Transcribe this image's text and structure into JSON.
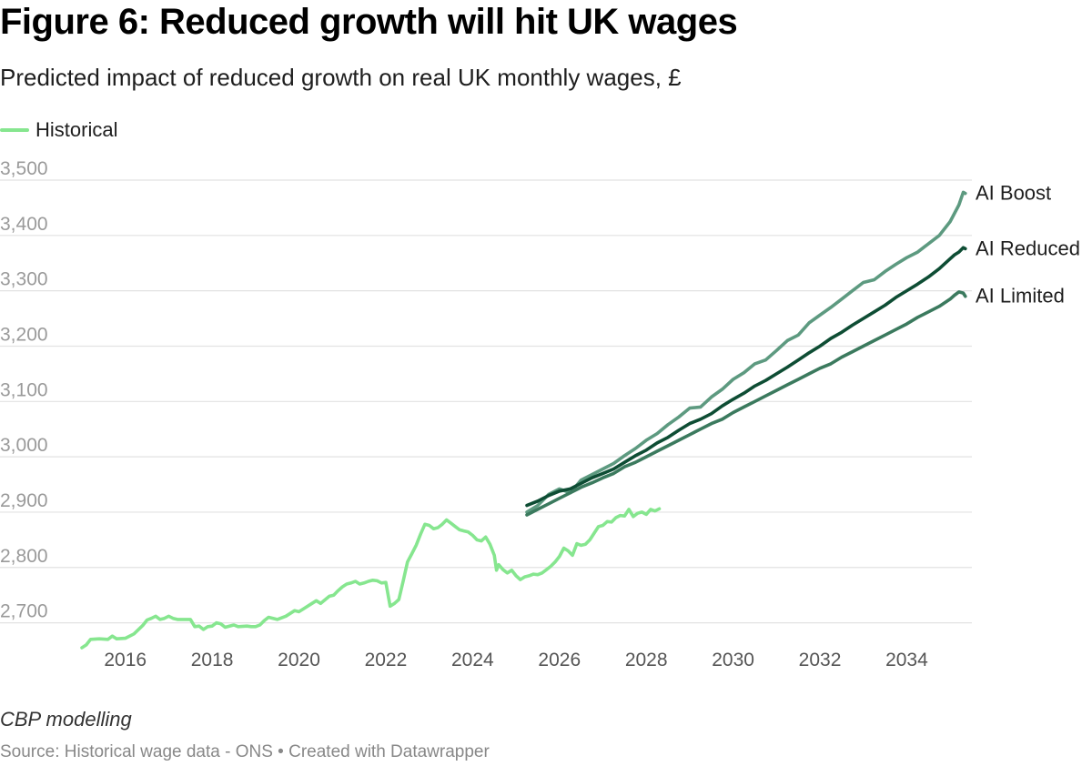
{
  "header": {
    "title": "Figure 6: Reduced growth will hit UK wages",
    "subtitle": "Predicted impact of reduced growth on real UK monthly wages, £"
  },
  "legend": {
    "label": "Historical",
    "color": "#86e68f"
  },
  "footer": {
    "note": "CBP modelling",
    "source": "Source: Historical wage data - ONS • Created with Datawrapper"
  },
  "chart_data": {
    "type": "line",
    "title": "Figure 6: Reduced growth will hit UK wages",
    "subtitle": "Predicted impact of reduced growth on real UK monthly wages, £",
    "xlabel": "",
    "ylabel": "",
    "xlim": [
      2015.0,
      2035.5
    ],
    "ylim": [
      2650,
      3500
    ],
    "x_ticks": [
      2016,
      2018,
      2020,
      2022,
      2024,
      2026,
      2028,
      2030,
      2032,
      2034
    ],
    "x_tick_labels": [
      "2016",
      "2018",
      "2020",
      "2022",
      "2024",
      "2026",
      "2028",
      "2030",
      "2032",
      "2034"
    ],
    "y_ticks": [
      2700,
      2800,
      2900,
      3000,
      3100,
      3200,
      3300,
      3400,
      3500
    ],
    "y_tick_labels": [
      "2,700",
      "2,800",
      "2,900",
      "3,000",
      "3,100",
      "3,200",
      "3,300",
      "3,400",
      "3,500"
    ],
    "grid": true,
    "legend_position": "top-left",
    "series": [
      {
        "name": "Historical",
        "color": "#86e68f",
        "points": [
          [
            2015.0,
            2655
          ],
          [
            2015.1,
            2660
          ],
          [
            2015.2,
            2670
          ],
          [
            2015.4,
            2671
          ],
          [
            2015.6,
            2670
          ],
          [
            2015.7,
            2676
          ],
          [
            2015.8,
            2671
          ],
          [
            2016.0,
            2672
          ],
          [
            2016.2,
            2680
          ],
          [
            2016.4,
            2695
          ],
          [
            2016.5,
            2705
          ],
          [
            2016.6,
            2708
          ],
          [
            2016.7,
            2712
          ],
          [
            2016.8,
            2706
          ],
          [
            2016.9,
            2708
          ],
          [
            2017.0,
            2712
          ],
          [
            2017.1,
            2708
          ],
          [
            2017.2,
            2706
          ],
          [
            2017.4,
            2706
          ],
          [
            2017.5,
            2706
          ],
          [
            2017.6,
            2693
          ],
          [
            2017.7,
            2694
          ],
          [
            2017.8,
            2688
          ],
          [
            2017.9,
            2693
          ],
          [
            2018.0,
            2694
          ],
          [
            2018.1,
            2700
          ],
          [
            2018.2,
            2698
          ],
          [
            2018.3,
            2692
          ],
          [
            2018.5,
            2696
          ],
          [
            2018.6,
            2693
          ],
          [
            2018.8,
            2694
          ],
          [
            2018.9,
            2693
          ],
          [
            2019.0,
            2693
          ],
          [
            2019.1,
            2696
          ],
          [
            2019.2,
            2704
          ],
          [
            2019.3,
            2710
          ],
          [
            2019.5,
            2706
          ],
          [
            2019.7,
            2712
          ],
          [
            2019.9,
            2722
          ],
          [
            2020.0,
            2720
          ],
          [
            2020.1,
            2725
          ],
          [
            2020.3,
            2735
          ],
          [
            2020.4,
            2740
          ],
          [
            2020.5,
            2735
          ],
          [
            2020.7,
            2748
          ],
          [
            2020.8,
            2750
          ],
          [
            2020.9,
            2758
          ],
          [
            2021.0,
            2765
          ],
          [
            2021.1,
            2770
          ],
          [
            2021.2,
            2772
          ],
          [
            2021.3,
            2775
          ],
          [
            2021.4,
            2770
          ],
          [
            2021.5,
            2772
          ],
          [
            2021.6,
            2775
          ],
          [
            2021.7,
            2777
          ],
          [
            2021.8,
            2776
          ],
          [
            2021.9,
            2772
          ],
          [
            2022.0,
            2773
          ],
          [
            2022.1,
            2730
          ],
          [
            2022.2,
            2735
          ],
          [
            2022.3,
            2742
          ],
          [
            2022.4,
            2775
          ],
          [
            2022.5,
            2810
          ],
          [
            2022.6,
            2825
          ],
          [
            2022.7,
            2840
          ],
          [
            2022.8,
            2860
          ],
          [
            2022.9,
            2878
          ],
          [
            2023.0,
            2876
          ],
          [
            2023.1,
            2870
          ],
          [
            2023.2,
            2872
          ],
          [
            2023.3,
            2878
          ],
          [
            2023.4,
            2886
          ],
          [
            2023.5,
            2880
          ],
          [
            2023.6,
            2874
          ],
          [
            2023.7,
            2868
          ],
          [
            2023.8,
            2866
          ],
          [
            2023.9,
            2864
          ],
          [
            2024.0,
            2858
          ],
          [
            2024.1,
            2850
          ],
          [
            2024.2,
            2848
          ],
          [
            2024.3,
            2855
          ],
          [
            2024.4,
            2842
          ],
          [
            2024.5,
            2822
          ],
          [
            2024.55,
            2795
          ],
          [
            2024.6,
            2805
          ],
          [
            2024.7,
            2796
          ],
          [
            2024.8,
            2790
          ],
          [
            2024.9,
            2795
          ],
          [
            2025.0,
            2785
          ],
          [
            2025.1,
            2778
          ],
          [
            2025.2,
            2783
          ],
          [
            2025.3,
            2785
          ],
          [
            2025.4,
            2788
          ],
          [
            2025.5,
            2787
          ],
          [
            2025.6,
            2790
          ],
          [
            2025.7,
            2796
          ],
          [
            2025.8,
            2802
          ],
          [
            2025.9,
            2810
          ],
          [
            2026.0,
            2820
          ],
          [
            2026.1,
            2835
          ],
          [
            2026.2,
            2830
          ],
          [
            2026.3,
            2822
          ],
          [
            2026.4,
            2843
          ],
          [
            2026.5,
            2840
          ],
          [
            2026.6,
            2842
          ],
          [
            2026.7,
            2850
          ],
          [
            2026.8,
            2862
          ],
          [
            2026.9,
            2874
          ],
          [
            2027.0,
            2876
          ],
          [
            2027.1,
            2883
          ],
          [
            2027.2,
            2882
          ],
          [
            2027.3,
            2890
          ],
          [
            2027.4,
            2894
          ],
          [
            2027.5,
            2893
          ],
          [
            2027.6,
            2905
          ],
          [
            2027.7,
            2892
          ],
          [
            2027.8,
            2898
          ],
          [
            2027.9,
            2900
          ],
          [
            2028.0,
            2896
          ],
          [
            2028.1,
            2905
          ],
          [
            2028.2,
            2902
          ],
          [
            2028.3,
            2906
          ]
        ]
      },
      {
        "name": "AI Boost",
        "color": "#5d9a80",
        "end_label": "AI Boost",
        "points": [
          [
            2025.25,
            2900
          ],
          [
            2025.5,
            2912
          ],
          [
            2025.75,
            2932
          ],
          [
            2026.0,
            2942
          ],
          [
            2026.25,
            2935
          ],
          [
            2026.5,
            2958
          ],
          [
            2026.75,
            2968
          ],
          [
            2027.0,
            2978
          ],
          [
            2027.25,
            2988
          ],
          [
            2027.5,
            3002
          ],
          [
            2027.75,
            3015
          ],
          [
            2028.0,
            3030
          ],
          [
            2028.25,
            3042
          ],
          [
            2028.5,
            3058
          ],
          [
            2028.75,
            3072
          ],
          [
            2029.0,
            3088
          ],
          [
            2029.25,
            3090
          ],
          [
            2029.5,
            3108
          ],
          [
            2029.75,
            3122
          ],
          [
            2030.0,
            3140
          ],
          [
            2030.25,
            3152
          ],
          [
            2030.5,
            3168
          ],
          [
            2030.75,
            3175
          ],
          [
            2031.0,
            3192
          ],
          [
            2031.25,
            3210
          ],
          [
            2031.5,
            3220
          ],
          [
            2031.75,
            3242
          ],
          [
            2032.0,
            3256
          ],
          [
            2032.25,
            3270
          ],
          [
            2032.5,
            3285
          ],
          [
            2032.75,
            3300
          ],
          [
            2033.0,
            3315
          ],
          [
            2033.25,
            3320
          ],
          [
            2033.5,
            3335
          ],
          [
            2033.75,
            3348
          ],
          [
            2034.0,
            3360
          ],
          [
            2034.25,
            3370
          ],
          [
            2034.5,
            3385
          ],
          [
            2034.75,
            3400
          ],
          [
            2035.0,
            3425
          ],
          [
            2035.1,
            3440
          ],
          [
            2035.2,
            3455
          ],
          [
            2035.3,
            3478
          ],
          [
            2035.35,
            3476
          ]
        ]
      },
      {
        "name": "AI Reduced",
        "color": "#0e4d34",
        "end_label": "AI Reduced",
        "points": [
          [
            2025.25,
            2912
          ],
          [
            2025.5,
            2920
          ],
          [
            2025.75,
            2930
          ],
          [
            2026.0,
            2938
          ],
          [
            2026.25,
            2942
          ],
          [
            2026.5,
            2952
          ],
          [
            2026.75,
            2962
          ],
          [
            2027.0,
            2970
          ],
          [
            2027.25,
            2978
          ],
          [
            2027.5,
            2990
          ],
          [
            2027.75,
            3002
          ],
          [
            2028.0,
            3012
          ],
          [
            2028.25,
            3025
          ],
          [
            2028.5,
            3035
          ],
          [
            2028.75,
            3048
          ],
          [
            2029.0,
            3060
          ],
          [
            2029.25,
            3068
          ],
          [
            2029.5,
            3078
          ],
          [
            2029.75,
            3092
          ],
          [
            2030.0,
            3104
          ],
          [
            2030.25,
            3115
          ],
          [
            2030.5,
            3128
          ],
          [
            2030.75,
            3138
          ],
          [
            2031.0,
            3150
          ],
          [
            2031.25,
            3162
          ],
          [
            2031.5,
            3175
          ],
          [
            2031.75,
            3188
          ],
          [
            2032.0,
            3200
          ],
          [
            2032.25,
            3214
          ],
          [
            2032.5,
            3225
          ],
          [
            2032.75,
            3238
          ],
          [
            2033.0,
            3250
          ],
          [
            2033.25,
            3262
          ],
          [
            2033.5,
            3274
          ],
          [
            2033.75,
            3288
          ],
          [
            2034.0,
            3300
          ],
          [
            2034.25,
            3312
          ],
          [
            2034.5,
            3325
          ],
          [
            2034.75,
            3340
          ],
          [
            2035.0,
            3358
          ],
          [
            2035.1,
            3365
          ],
          [
            2035.2,
            3370
          ],
          [
            2035.3,
            3378
          ],
          [
            2035.35,
            3376
          ]
        ]
      },
      {
        "name": "AI Limited",
        "color": "#3b7a5e",
        "end_label": "AI Limited",
        "points": [
          [
            2025.25,
            2895
          ],
          [
            2025.5,
            2905
          ],
          [
            2025.75,
            2915
          ],
          [
            2026.0,
            2925
          ],
          [
            2026.25,
            2935
          ],
          [
            2026.5,
            2945
          ],
          [
            2026.75,
            2953
          ],
          [
            2027.0,
            2962
          ],
          [
            2027.25,
            2970
          ],
          [
            2027.5,
            2982
          ],
          [
            2027.75,
            2990
          ],
          [
            2028.0,
            3000
          ],
          [
            2028.25,
            3010
          ],
          [
            2028.5,
            3020
          ],
          [
            2028.75,
            3030
          ],
          [
            2029.0,
            3040
          ],
          [
            2029.25,
            3050
          ],
          [
            2029.5,
            3060
          ],
          [
            2029.75,
            3068
          ],
          [
            2030.0,
            3080
          ],
          [
            2030.25,
            3090
          ],
          [
            2030.5,
            3100
          ],
          [
            2030.75,
            3110
          ],
          [
            2031.0,
            3120
          ],
          [
            2031.25,
            3130
          ],
          [
            2031.5,
            3140
          ],
          [
            2031.75,
            3150
          ],
          [
            2032.0,
            3160
          ],
          [
            2032.25,
            3168
          ],
          [
            2032.5,
            3180
          ],
          [
            2032.75,
            3190
          ],
          [
            2033.0,
            3200
          ],
          [
            2033.25,
            3210
          ],
          [
            2033.5,
            3220
          ],
          [
            2033.75,
            3230
          ],
          [
            2034.0,
            3240
          ],
          [
            2034.25,
            3252
          ],
          [
            2034.5,
            3262
          ],
          [
            2034.75,
            3272
          ],
          [
            2035.0,
            3285
          ],
          [
            2035.1,
            3292
          ],
          [
            2035.2,
            3298
          ],
          [
            2035.3,
            3296
          ],
          [
            2035.35,
            3290
          ]
        ]
      }
    ]
  }
}
